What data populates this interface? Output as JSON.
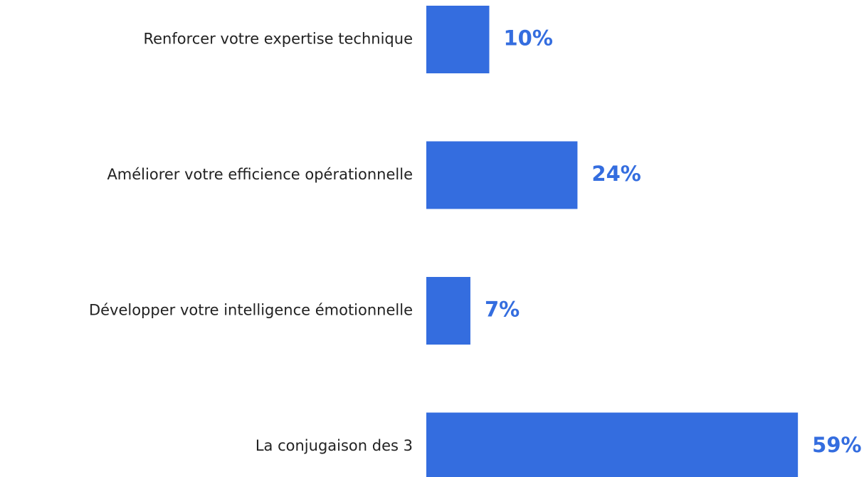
{
  "chart_data": {
    "type": "hbar",
    "categories": [
      "Renforcer votre expertise technique",
      "Améliorer votre efficience opérationnelle",
      "Développer votre intelligence émotionnelle",
      "La conjugaison des 3"
    ],
    "values": [
      10,
      24,
      7,
      59
    ],
    "value_labels": [
      "10%",
      "24%",
      "7%",
      "59%"
    ],
    "color": "#346ddf"
  }
}
